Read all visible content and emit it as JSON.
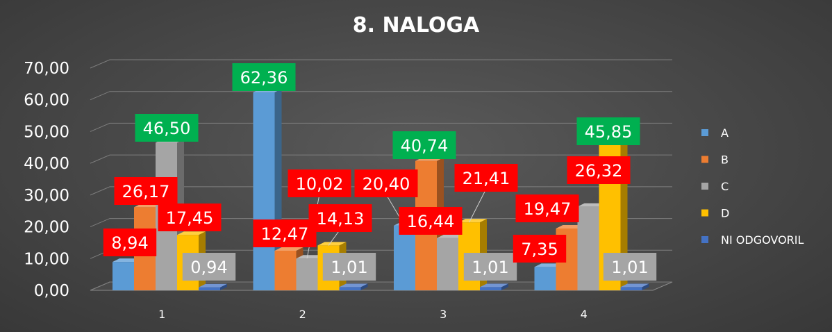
{
  "chart_data": {
    "type": "bar",
    "title": "8. NALOGA",
    "categories": [
      "1",
      "2",
      "3",
      "4"
    ],
    "series": [
      {
        "name": "A",
        "color": "#5b9bd5",
        "values": [
          8.94,
          62.36,
          20.4,
          7.35
        ]
      },
      {
        "name": "B",
        "color": "#ed7d31",
        "values": [
          26.17,
          12.47,
          40.74,
          19.47
        ]
      },
      {
        "name": "C",
        "color": "#a5a5a5",
        "values": [
          46.5,
          10.02,
          16.44,
          26.32
        ]
      },
      {
        "name": "D",
        "color": "#ffc000",
        "values": [
          17.45,
          14.13,
          21.41,
          45.85
        ]
      },
      {
        "name": "NI ODGOVORIL",
        "color": "#4472c4",
        "values": [
          0.94,
          1.01,
          1.01,
          1.01
        ]
      }
    ],
    "data_labels": [
      [
        "8,94",
        "26,17",
        "46,50",
        "17,45",
        "0,94"
      ],
      [
        "62,36",
        "12,47",
        "10,02",
        "14,13",
        "1,01"
      ],
      [
        "20,40",
        "40,74",
        "16,44",
        "21,41",
        "1,01"
      ],
      [
        "7,35",
        "19,47",
        "26,32",
        "45,85",
        "1,01"
      ]
    ],
    "label_colors": [
      [
        "#ff0000",
        "#ff0000",
        "#00b050",
        "#ff0000",
        "#a5a5a5"
      ],
      [
        "#00b050",
        "#ff0000",
        "#ff0000",
        "#ff0000",
        "#a5a5a5"
      ],
      [
        "#ff0000",
        "#00b050",
        "#ff0000",
        "#ff0000",
        "#a5a5a5"
      ],
      [
        "#ff0000",
        "#ff0000",
        "#ff0000",
        "#00b050",
        "#a5a5a5"
      ]
    ],
    "yticks": [
      "0,00",
      "10,00",
      "20,00",
      "30,00",
      "40,00",
      "50,00",
      "60,00",
      "70,00"
    ],
    "ylim": [
      0,
      70
    ],
    "grid": true,
    "legend_position": "right"
  }
}
